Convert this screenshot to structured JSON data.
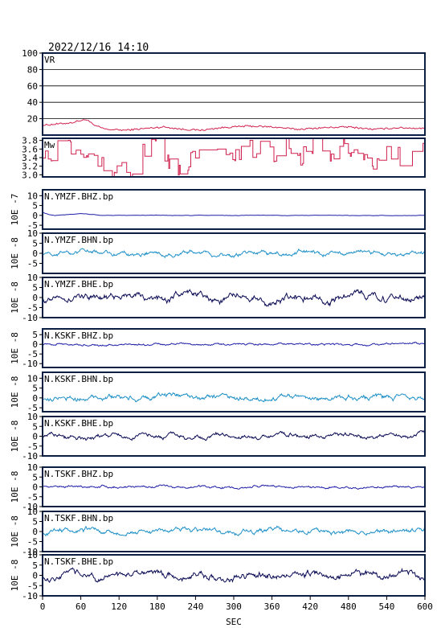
{
  "title": "2022/12/16  14:10",
  "xlabel": "SEC",
  "x_ticks": [
    0,
    60,
    120,
    180,
    240,
    300,
    360,
    420,
    480,
    540,
    600
  ],
  "chart_data": [
    {
      "type": "line",
      "label": "VR",
      "ylim": [
        0,
        100
      ],
      "yticks": [
        20,
        40,
        60,
        80,
        100
      ],
      "gridlines": [
        20,
        40,
        60,
        80
      ],
      "color": "#d1224f",
      "series": [
        {
          "x": [
            0,
            30,
            45,
            55,
            70,
            80,
            100,
            130,
            160,
            190,
            220,
            250,
            280,
            320,
            360,
            400,
            440,
            480,
            520,
            560,
            600
          ],
          "values": [
            12,
            14,
            15,
            17,
            19,
            12,
            7,
            6,
            8,
            10,
            7,
            6,
            9,
            11,
            10,
            7,
            9,
            10,
            7,
            9,
            8
          ]
        }
      ]
    },
    {
      "type": "line",
      "label": "Mw",
      "ylim": [
        2.95,
        3.85
      ],
      "yticks": [
        3.0,
        3.2,
        3.4,
        3.6,
        3.8
      ],
      "color": "#d1224f",
      "series": [
        {
          "x": [
            0,
            20,
            40,
            60,
            80,
            100,
            120,
            140,
            160,
            180,
            200,
            220,
            240,
            260,
            280,
            300,
            320,
            340,
            360,
            380,
            400,
            420,
            440,
            460,
            480,
            500,
            520,
            540,
            560,
            580,
            600
          ],
          "values": [
            3.6,
            3.55,
            3.7,
            3.3,
            3.5,
            3.1,
            3.05,
            3.0,
            3.6,
            3.75,
            3.3,
            3.05,
            3.6,
            3.35,
            3.7,
            3.4,
            3.55,
            3.75,
            3.45,
            3.7,
            3.3,
            3.75,
            3.6,
            3.4,
            3.7,
            3.55,
            3.1,
            3.65,
            3.4,
            3.7,
            3.55
          ]
        }
      ]
    },
    {
      "type": "line",
      "label": "N.YMZF.BHZ.bp",
      "ylabel": "10E  -7",
      "ylim": [
        -7,
        13
      ],
      "yticks": [
        -5,
        0,
        5,
        10
      ],
      "color": "#1f1fa8",
      "amplitude": 0.1,
      "series": [
        {
          "x": [
            0,
            10,
            20,
            40,
            60,
            80,
            90,
            600
          ],
          "values": [
            1.5,
            0.5,
            0,
            0.5,
            1,
            0.3,
            0,
            0
          ]
        }
      ]
    },
    {
      "type": "line",
      "label": "N.YMZF.BHN.bp",
      "ylabel": "10E  -8",
      "ylim": [
        -10,
        10
      ],
      "yticks": [
        -5,
        0,
        5,
        10
      ],
      "color": "#1e90c8",
      "amplitude": 1.2,
      "series": [
        {
          "x": [
            0,
            600
          ],
          "values": [
            0,
            0
          ]
        }
      ]
    },
    {
      "type": "line",
      "label": "N.YMZF.BHE.bp",
      "ylabel": "10E  -8",
      "ylim": [
        -10,
        10
      ],
      "yticks": [
        -10,
        -5,
        0,
        5,
        10
      ],
      "color": "#0a0a55",
      "amplitude": 2.0,
      "series": [
        {
          "x": [
            0,
            600
          ],
          "values": [
            0,
            0
          ]
        }
      ]
    },
    {
      "type": "line",
      "label": "N.KSKF.BHZ.bp",
      "ylabel": "10E  -8",
      "ylim": [
        -12,
        8
      ],
      "yticks": [
        -10,
        -5,
        0,
        5
      ],
      "color": "#1f1fa8",
      "amplitude": 0.6,
      "series": [
        {
          "x": [
            0,
            600
          ],
          "values": [
            0,
            0
          ]
        }
      ]
    },
    {
      "type": "line",
      "label": "N.KSKF.BHN.bp",
      "ylabel": "10E  -8",
      "ylim": [
        -7,
        13
      ],
      "yticks": [
        -5,
        0,
        5,
        10
      ],
      "color": "#1e90c8",
      "amplitude": 1.5,
      "series": [
        {
          "x": [
            0,
            600
          ],
          "values": [
            0,
            0
          ]
        }
      ]
    },
    {
      "type": "line",
      "label": "N.KSKF.BHE.bp",
      "ylabel": "10E  -8",
      "ylim": [
        -10,
        10
      ],
      "yticks": [
        -10,
        -5,
        0,
        5,
        10
      ],
      "color": "#0a0a55",
      "amplitude": 1.3,
      "series": [
        {
          "x": [
            0,
            600
          ],
          "values": [
            0,
            0
          ]
        }
      ]
    },
    {
      "type": "line",
      "label": "N.TSKF.BHZ.bp",
      "ylabel": "10E  -8",
      "ylim": [
        -10,
        10
      ],
      "yticks": [
        -10,
        -5,
        0,
        5,
        10
      ],
      "color": "#1f1fa8",
      "amplitude": 0.7,
      "series": [
        {
          "x": [
            0,
            600
          ],
          "values": [
            0,
            0
          ]
        }
      ]
    },
    {
      "type": "line",
      "label": "N.TSKF.BHN.bp",
      "ylabel": "10E  -8",
      "ylim": [
        -10,
        10
      ],
      "yticks": [
        -10,
        -5,
        0,
        5,
        10
      ],
      "color": "#1e90c8",
      "amplitude": 1.4,
      "series": [
        {
          "x": [
            0,
            600
          ],
          "values": [
            0,
            0
          ]
        }
      ]
    },
    {
      "type": "line",
      "label": "N.TSKF.BHE.bp",
      "ylabel": "10E  -8",
      "ylim": [
        -10,
        10
      ],
      "yticks": [
        -10,
        -5,
        0,
        5,
        10
      ],
      "color": "#0a0a55",
      "amplitude": 2.0,
      "series": [
        {
          "x": [
            0,
            600
          ],
          "values": [
            0,
            0
          ]
        }
      ]
    }
  ]
}
